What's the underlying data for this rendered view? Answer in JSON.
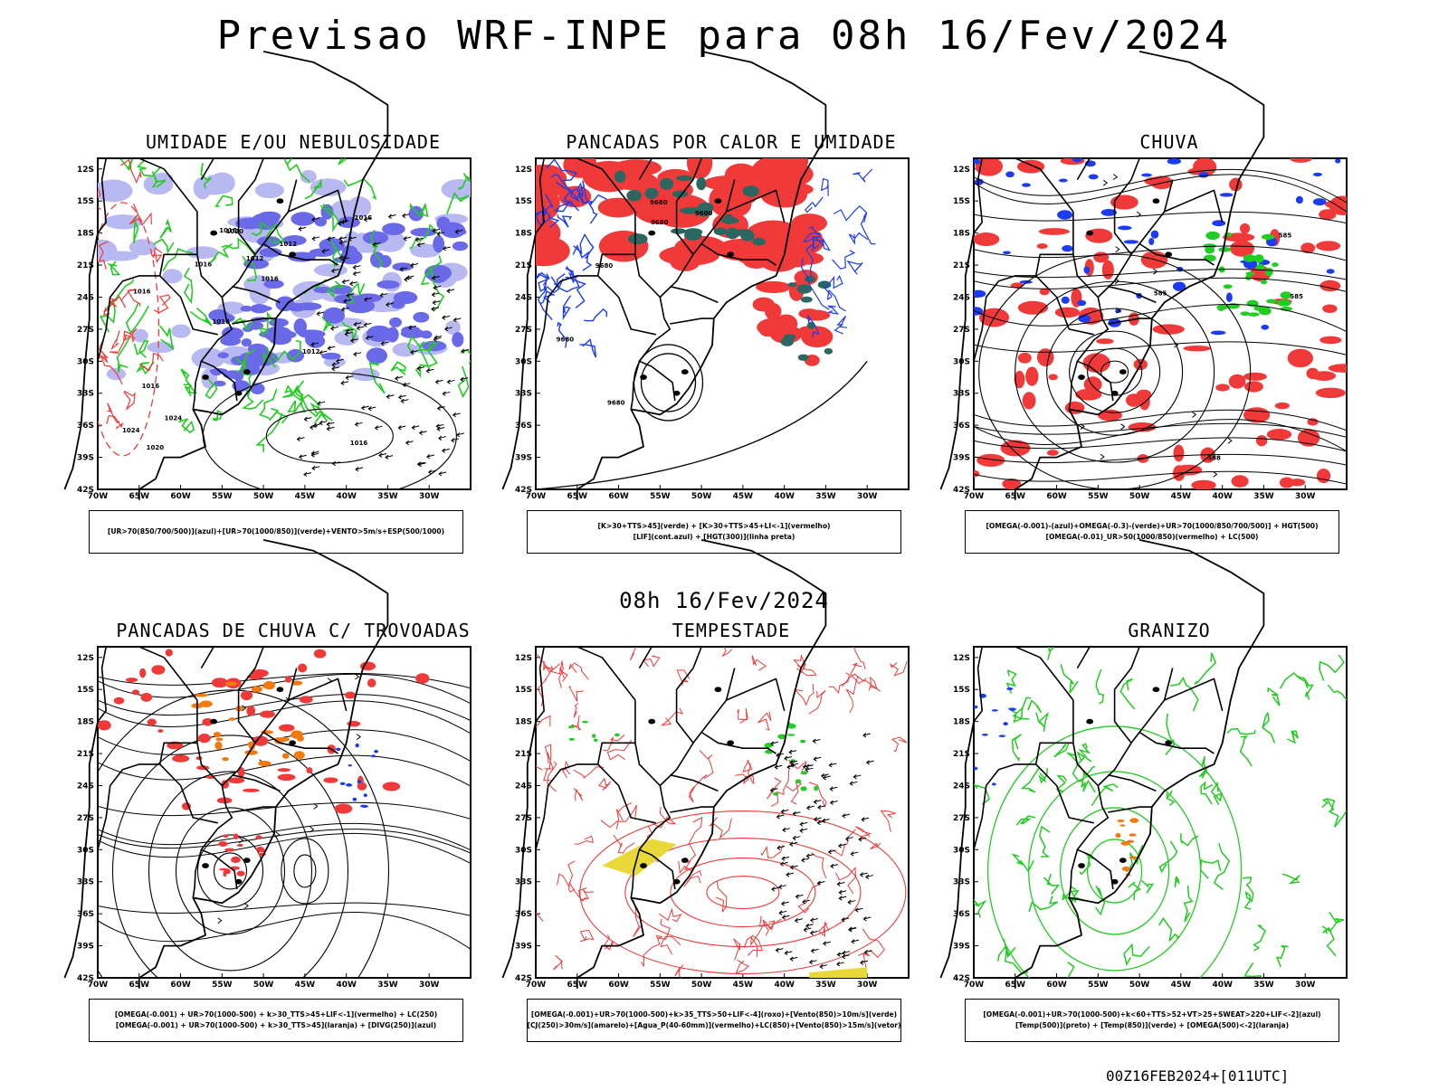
{
  "title": "Previsao WRF-INPE  para 08h 16/Fev/2024",
  "subtitle_middle": "08h 16/Fev/2024",
  "footer_stamp": "00Z16FEB2024+[011UTC]",
  "axis": {
    "lat_ticks": [
      "12S",
      "15S",
      "18S",
      "21S",
      "24S",
      "27S",
      "30S",
      "33S",
      "36S",
      "39S",
      "42S"
    ],
    "lon_ticks": [
      "70W",
      "65W",
      "60W",
      "55W",
      "50W",
      "45W",
      "40W",
      "35W",
      "30W"
    ]
  },
  "colors": {
    "humidity_blue": "#6a6ae8",
    "humidity_light": "#b9b9f2",
    "green": "#22cc22",
    "red": "#f03a3a",
    "blue": "#1d3cf0",
    "orange": "#f07a10",
    "darkgreen": "#2b6660",
    "yellow": "#e8d838"
  },
  "panels": [
    {
      "id": "umidade",
      "title": "UMIDADE E/OU NEBULOSIDADE",
      "legend": [
        "[UR>70(850/700/500)](azul)+[UR>70(1000/850)](verde)+VENTO>5m/s+ESP(500/1000)"
      ],
      "contour_labels": [
        "1016",
        "1016",
        "1016",
        "1016",
        "1012",
        "1020",
        "1016",
        "1012",
        "1016",
        "1016",
        "1024",
        "1024",
        "1020",
        "1016",
        "1012"
      ]
    },
    {
      "id": "pancadas_calor",
      "title": "PANCADAS POR CALOR E UMIDADE",
      "legend": [
        "[K>30+TTS>45](verde) + [K>30+TTS>45+LI<-1](vermelho)",
        "[LIF](cont.azul) + [HGT(300)](linha preta)"
      ],
      "contour_labels": [
        "9680",
        "9680",
        "9680",
        "9680",
        "9680",
        "9600"
      ]
    },
    {
      "id": "chuva",
      "title": "CHUVA",
      "legend": [
        "[OMEGA(-0.001)-(azul)+OMEGA(-0.3)-(verde)+UR>70(1000/850/700/500)] + HGT(500)",
        "[OMEGA(-0.01)_UR>50(1000/850)(vermelho) + LC(500)"
      ],
      "contour_labels": [
        "588",
        "585",
        "585",
        "585"
      ]
    },
    {
      "id": "pancadas_trovoadas",
      "title": "PANCADAS DE CHUVA C/ TROVOADAS",
      "legend": [
        "[OMEGA(-0.001) + UR>70(1000-500) + k>30_TTS>45+LIF<-1](vermelho) + LC(250)",
        "[OMEGA(-0.001) + UR>70(1000-500) + k>30_TTS>45](laranja) + [DIVG(250)](azul)"
      ],
      "contour_labels": []
    },
    {
      "id": "tempestade",
      "title": "TEMPESTADE",
      "legend": [
        "[OMEGA(-0.001)+UR>70(1000-500)+k>35_TTS>50+LIF<-4](roxo)+[Vento(850)>10m/s](verde)",
        "[CJ(250)>30m/s](amarelo)+[Agua_P(40-60mm)](vermelho)+LC(850)+[Vento(850)>15m/s](vetor)"
      ],
      "contour_labels": []
    },
    {
      "id": "granizo",
      "title": "GRANIZO",
      "legend": [
        "[OMEGA(-0.001)+UR>70(1000-500)+k<60+TTS>52+VT>25+SWEAT>220+LIF<-2](azul)",
        "[Temp(500)](preto) + [Temp(850)](verde) + [OMEGA(500)<-2](laranja)"
      ],
      "contour_labels": []
    }
  ]
}
